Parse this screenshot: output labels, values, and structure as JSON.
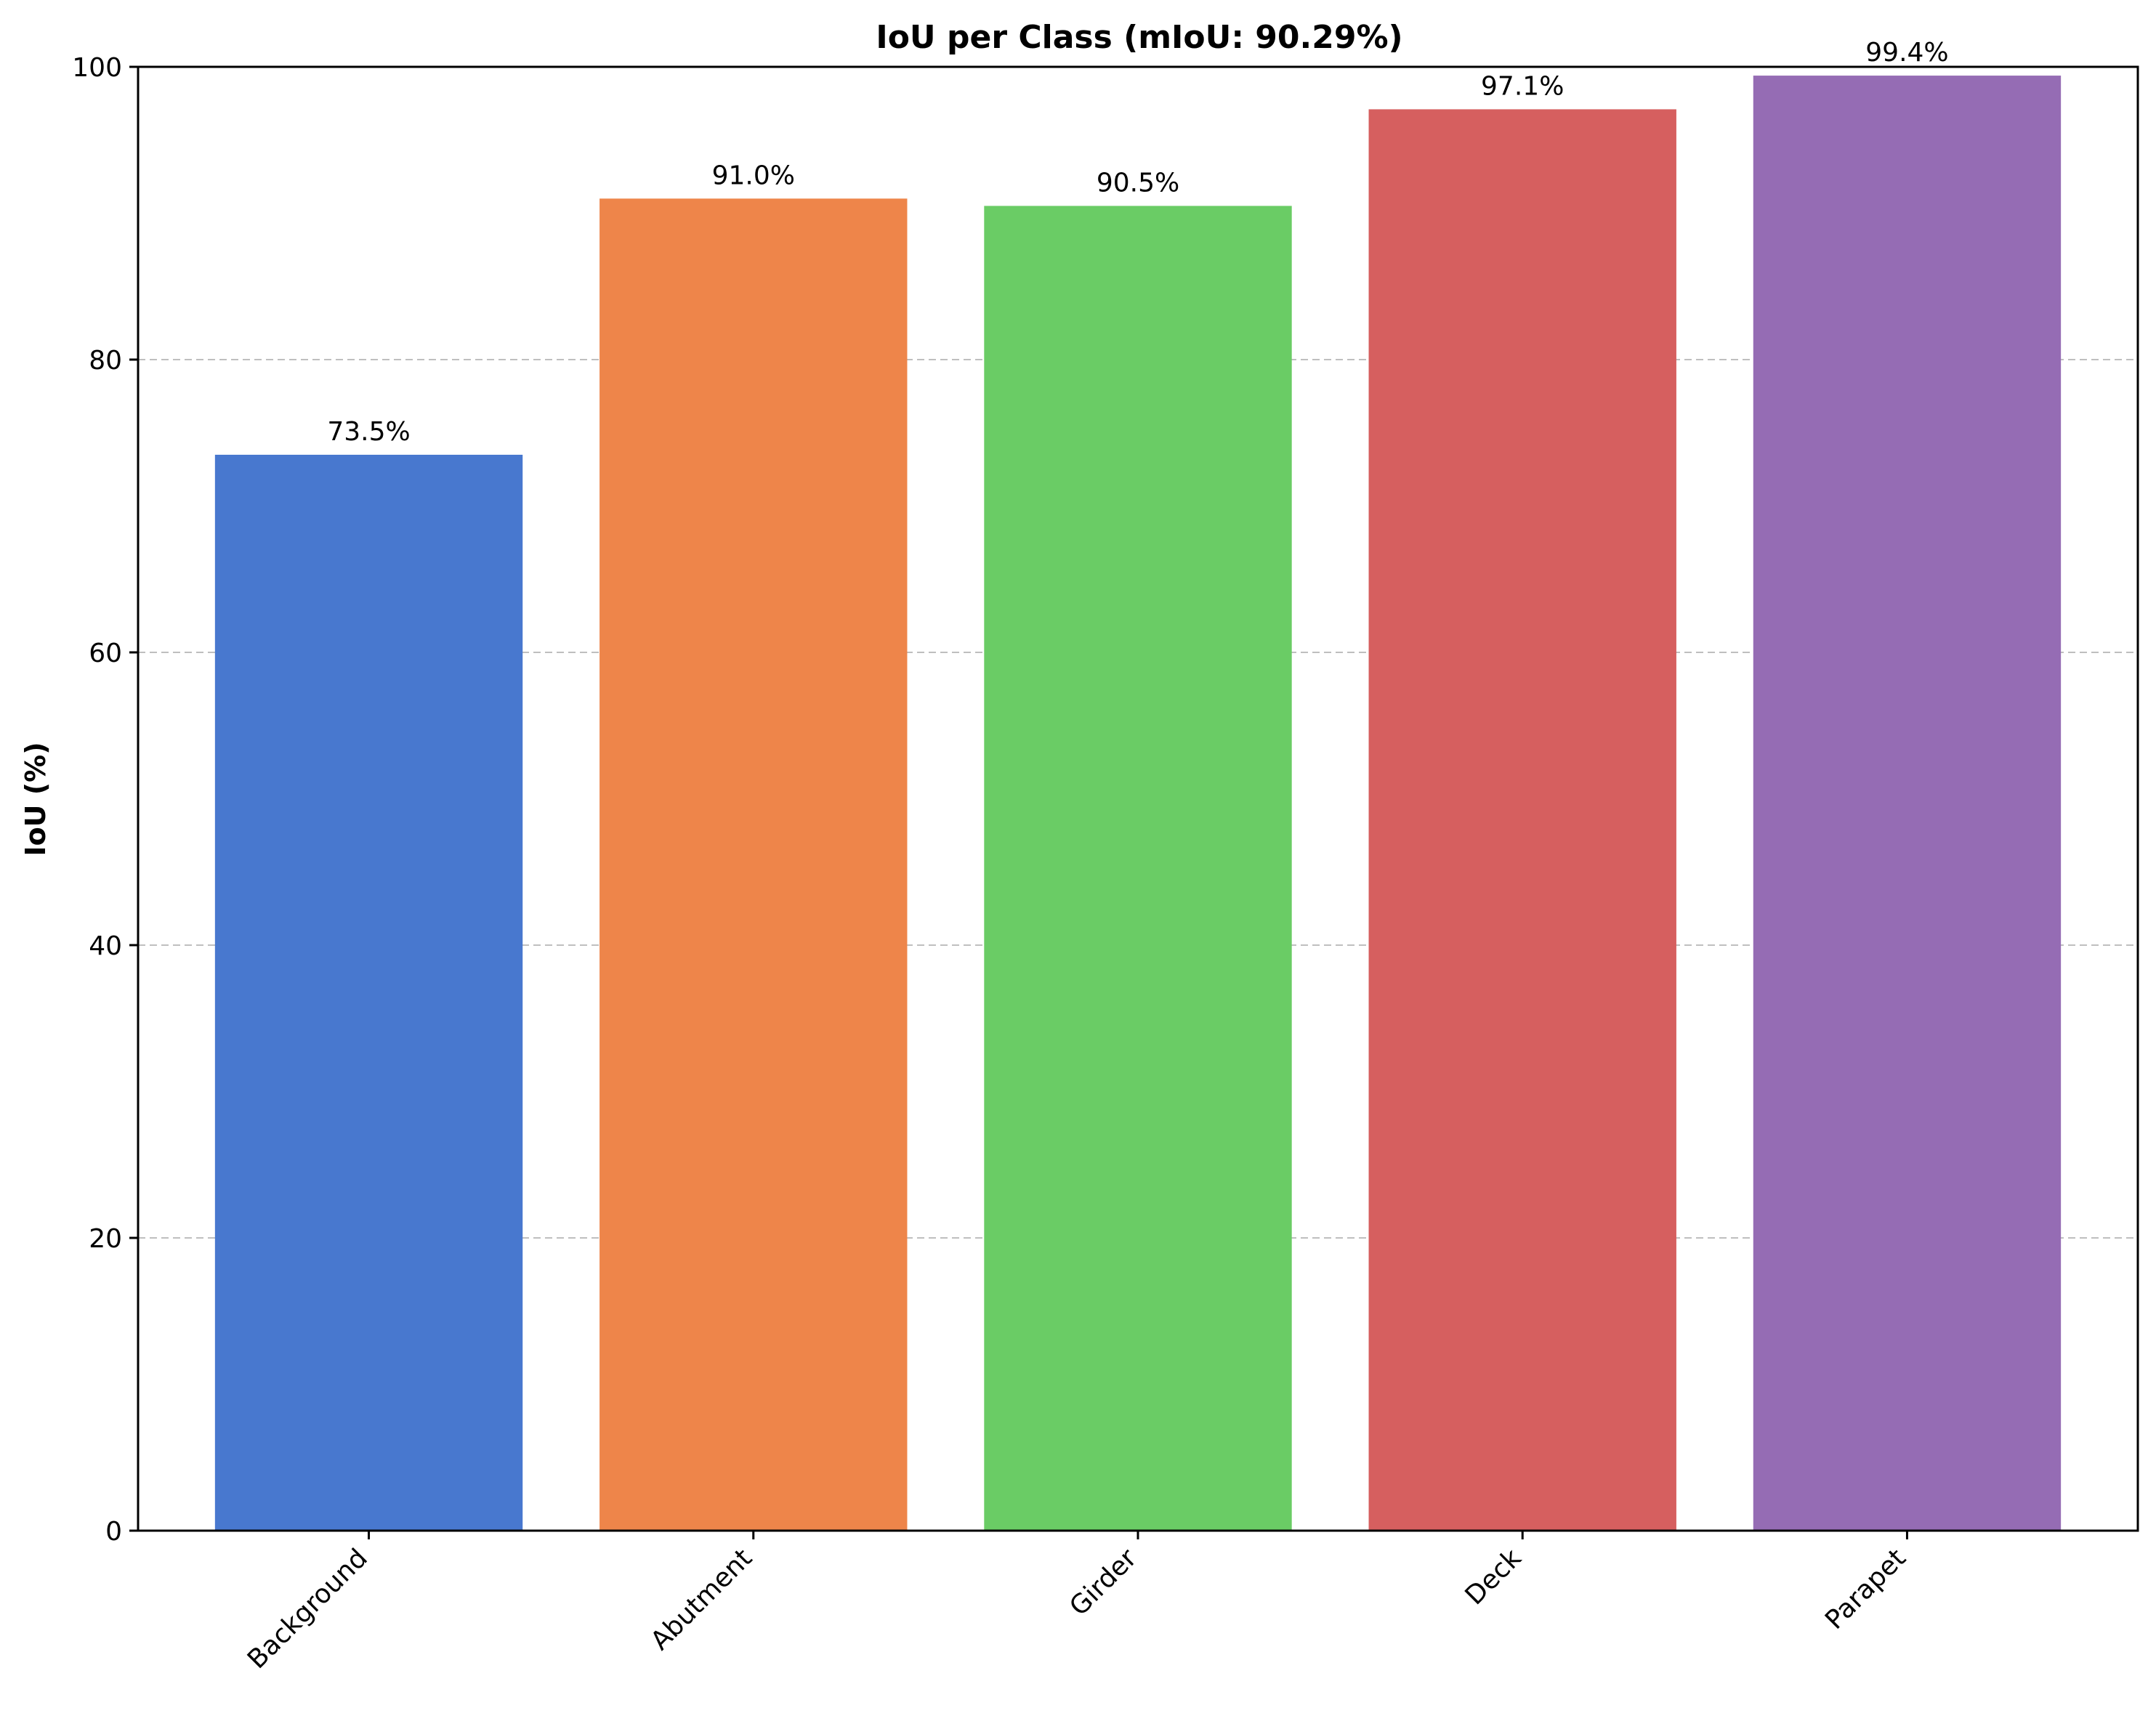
{
  "chart_data": {
    "type": "bar",
    "title": "IoU per Class (mIoU: 90.29%)",
    "xlabel": "",
    "ylabel": "IoU (%)",
    "ylim": [
      0,
      100
    ],
    "yticks": [
      0,
      20,
      40,
      60,
      80,
      100
    ],
    "grid": "y-dashed",
    "categories": [
      "Background",
      "Abutment",
      "Girder",
      "Deck",
      "Parapet"
    ],
    "values": [
      73.5,
      91.0,
      90.5,
      97.1,
      99.4
    ],
    "data_labels": [
      "73.5%",
      "91.0%",
      "90.5%",
      "97.1%",
      "99.4%"
    ],
    "colors": [
      "#4878cf",
      "#ee854a",
      "#6acc65",
      "#d65f5f",
      "#956cb4"
    ]
  }
}
